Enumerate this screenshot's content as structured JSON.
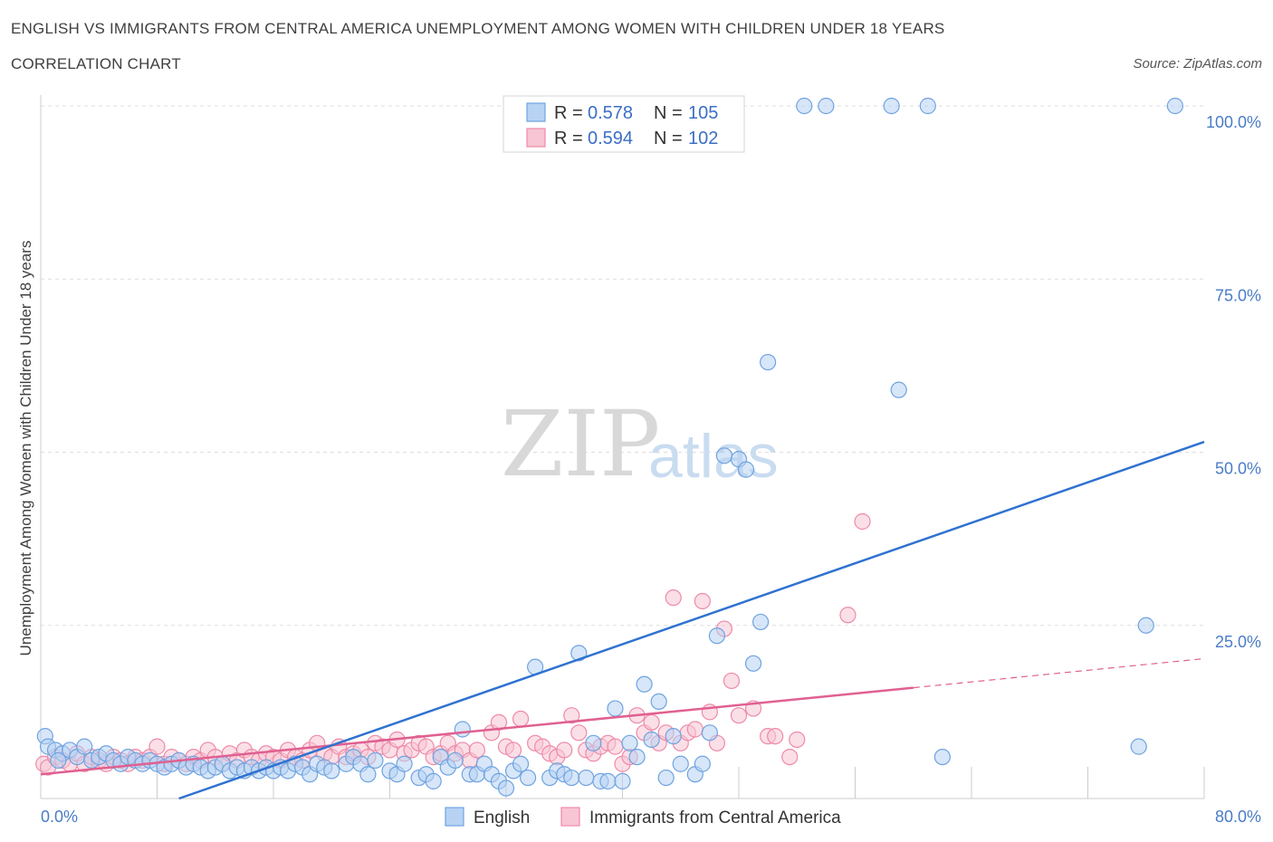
{
  "title": "ENGLISH VS IMMIGRANTS FROM CENTRAL AMERICA UNEMPLOYMENT AMONG WOMEN WITH CHILDREN UNDER 18 YEARS",
  "subtitle": "CORRELATION CHART",
  "source": "Source: ZipAtlas.com",
  "watermark": {
    "zip": "ZIP",
    "atlas": "atlas"
  },
  "colors": {
    "english": "#6fa3e0",
    "english_fill": "#b7d2f3",
    "english_line": "#2f72d0",
    "immigrants": "#ee8aa8",
    "immigrants_fill": "#f8c5d4",
    "immigrants_line": "#e06090",
    "tick_text": "#4a7cc7",
    "grid": "#dddddd"
  },
  "stats": {
    "r_label": "R =",
    "n_label": "N =",
    "rows": [
      {
        "series": "English",
        "r": "0.578",
        "n": "105"
      },
      {
        "series": "Immigrants from Central America",
        "r": "0.594",
        "n": "102"
      }
    ]
  },
  "chart_data": {
    "type": "scatter",
    "title": "ENGLISH VS IMMIGRANTS FROM CENTRAL AMERICA UNEMPLOYMENT AMONG WOMEN WITH CHILDREN UNDER 18 YEARS",
    "subtitle": "CORRELATION CHART",
    "xlabel": "",
    "ylabel": "Unemployment Among Women with Children Under 18 years",
    "xlim": [
      0,
      80
    ],
    "ylim": [
      0,
      100
    ],
    "x_tick_labels": [
      {
        "value": 0,
        "label": "0.0%"
      },
      {
        "value": 80,
        "label": "80.0%"
      }
    ],
    "y_tick_labels": [
      {
        "value": 25,
        "label": "25.0%"
      },
      {
        "value": 50,
        "label": "50.0%"
      },
      {
        "value": 75,
        "label": "75.0%"
      },
      {
        "value": 100,
        "label": "100.0%"
      }
    ],
    "grid": true,
    "legend": "bottom-center",
    "series": [
      {
        "name": "English",
        "regression": {
          "x": [
            9.5,
            80
          ],
          "y": [
            0,
            51.5
          ]
        },
        "points": [
          [
            0.3,
            9
          ],
          [
            0.5,
            7.5
          ],
          [
            1,
            7
          ],
          [
            1.5,
            6.5
          ],
          [
            2,
            7
          ],
          [
            2.5,
            6
          ],
          [
            3,
            7.5
          ],
          [
            3.5,
            5.5
          ],
          [
            4,
            6
          ],
          [
            4.5,
            6.5
          ],
          [
            5,
            5.5
          ],
          [
            5.5,
            5
          ],
          [
            6,
            6
          ],
          [
            6.5,
            5.5
          ],
          [
            7,
            5
          ],
          [
            7.5,
            5.5
          ],
          [
            8,
            5
          ],
          [
            8.5,
            4.5
          ],
          [
            9,
            5
          ],
          [
            9.5,
            5.5
          ],
          [
            10,
            4.5
          ],
          [
            10.5,
            5
          ],
          [
            11,
            4.5
          ],
          [
            11.5,
            4
          ],
          [
            12,
            4.5
          ],
          [
            12.5,
            5
          ],
          [
            13,
            4
          ],
          [
            13.5,
            4.5
          ],
          [
            14,
            4
          ],
          [
            14.5,
            4.5
          ],
          [
            15,
            4
          ],
          [
            15.5,
            4.5
          ],
          [
            16,
            4
          ],
          [
            16.5,
            4.5
          ],
          [
            17,
            4
          ],
          [
            17.5,
            5
          ],
          [
            18,
            4.5
          ],
          [
            18.5,
            3.5
          ],
          [
            19,
            5
          ],
          [
            19.5,
            4.5
          ],
          [
            20,
            4
          ],
          [
            21,
            5
          ],
          [
            21.5,
            6
          ],
          [
            22,
            5
          ],
          [
            22.5,
            3.5
          ],
          [
            23,
            5.5
          ],
          [
            24,
            4
          ],
          [
            24.5,
            3.5
          ],
          [
            25,
            5
          ],
          [
            26,
            3
          ],
          [
            26.5,
            3.5
          ],
          [
            27,
            2.5
          ],
          [
            27.5,
            6
          ],
          [
            28,
            4.5
          ],
          [
            28.5,
            5.5
          ],
          [
            29,
            10
          ],
          [
            29.5,
            3.5
          ],
          [
            30,
            3.5
          ],
          [
            30.5,
            5
          ],
          [
            31,
            3.5
          ],
          [
            31.5,
            2.5
          ],
          [
            32,
            1.5
          ],
          [
            32.5,
            4
          ],
          [
            33,
            5
          ],
          [
            33.5,
            3
          ],
          [
            34,
            19
          ],
          [
            35,
            3
          ],
          [
            35.5,
            4
          ],
          [
            36,
            3.5
          ],
          [
            36.5,
            3
          ],
          [
            37,
            21
          ],
          [
            37.5,
            3
          ],
          [
            38,
            8
          ],
          [
            38.5,
            2.5
          ],
          [
            39,
            2.5
          ],
          [
            39.5,
            13
          ],
          [
            40,
            2.5
          ],
          [
            40.5,
            8
          ],
          [
            41,
            6
          ],
          [
            41.5,
            16.5
          ],
          [
            42,
            8.5
          ],
          [
            42.5,
            14
          ],
          [
            43,
            3
          ],
          [
            43.5,
            9
          ],
          [
            44,
            5
          ],
          [
            45,
            3.5
          ],
          [
            45.5,
            5
          ],
          [
            46,
            9.5
          ],
          [
            46.5,
            23.5
          ],
          [
            47,
            49.5
          ],
          [
            48,
            49
          ],
          [
            48.5,
            47.5
          ],
          [
            49,
            19.5
          ],
          [
            49.5,
            25.5
          ],
          [
            50,
            63
          ],
          [
            52.5,
            100
          ],
          [
            54,
            100
          ],
          [
            58.5,
            100
          ],
          [
            59,
            59
          ],
          [
            61,
            100
          ],
          [
            62,
            6
          ],
          [
            76,
            25
          ],
          [
            75.5,
            7.5
          ],
          [
            78,
            100
          ],
          [
            1.2,
            5.5
          ]
        ]
      },
      {
        "name": "Immigrants from Central America",
        "regression": {
          "x": [
            0,
            60
          ],
          "y": [
            3.5,
            16
          ]
        },
        "extrapolation": {
          "x": [
            60,
            80
          ],
          "y": [
            16,
            20.2
          ]
        },
        "points": [
          [
            0.2,
            5
          ],
          [
            0.5,
            4.5
          ],
          [
            1,
            6
          ],
          [
            1.5,
            5.5
          ],
          [
            2,
            5
          ],
          [
            2.5,
            6.5
          ],
          [
            3,
            5
          ],
          [
            3.5,
            6
          ],
          [
            4,
            5.5
          ],
          [
            4.5,
            5
          ],
          [
            5,
            6
          ],
          [
            5.5,
            5.5
          ],
          [
            6,
            5
          ],
          [
            6.5,
            6
          ],
          [
            7,
            5.5
          ],
          [
            7.5,
            6
          ],
          [
            8,
            7.5
          ],
          [
            8.5,
            5
          ],
          [
            9,
            6
          ],
          [
            9.5,
            5.5
          ],
          [
            10,
            5
          ],
          [
            10.5,
            6
          ],
          [
            11,
            5.5
          ],
          [
            11.5,
            7
          ],
          [
            12,
            6
          ],
          [
            12.5,
            5
          ],
          [
            13,
            6.5
          ],
          [
            13.5,
            5.5
          ],
          [
            14,
            7
          ],
          [
            14.5,
            6
          ],
          [
            15,
            5.5
          ],
          [
            15.5,
            6.5
          ],
          [
            16,
            6
          ],
          [
            16.5,
            5.5
          ],
          [
            17,
            7
          ],
          [
            17.5,
            6
          ],
          [
            18,
            5.5
          ],
          [
            18.5,
            7
          ],
          [
            19,
            8
          ],
          [
            19.5,
            6.5
          ],
          [
            20,
            6
          ],
          [
            20.5,
            7.5
          ],
          [
            21,
            6
          ],
          [
            21.5,
            6.5
          ],
          [
            22,
            7
          ],
          [
            22.5,
            6
          ],
          [
            23,
            8
          ],
          [
            23.5,
            7.5
          ],
          [
            24,
            7
          ],
          [
            24.5,
            8.5
          ],
          [
            25,
            6.5
          ],
          [
            25.5,
            7
          ],
          [
            26,
            8
          ],
          [
            26.5,
            7.5
          ],
          [
            27,
            6
          ],
          [
            27.5,
            6.5
          ],
          [
            28,
            8
          ],
          [
            28.5,
            6.5
          ],
          [
            29,
            7
          ],
          [
            29.5,
            5.5
          ],
          [
            30,
            7
          ],
          [
            31,
            9.5
          ],
          [
            31.5,
            11
          ],
          [
            32,
            7.5
          ],
          [
            32.5,
            7
          ],
          [
            33,
            11.5
          ],
          [
            34,
            8
          ],
          [
            34.5,
            7.5
          ],
          [
            35,
            6.5
          ],
          [
            35.5,
            6
          ],
          [
            36,
            7
          ],
          [
            36.5,
            12
          ],
          [
            37,
            9.5
          ],
          [
            37.5,
            7
          ],
          [
            38,
            6.5
          ],
          [
            38.5,
            7.5
          ],
          [
            39,
            8
          ],
          [
            39.5,
            7.5
          ],
          [
            40,
            5
          ],
          [
            40.5,
            6
          ],
          [
            41,
            12
          ],
          [
            41.5,
            9.5
          ],
          [
            42,
            11
          ],
          [
            42.5,
            8
          ],
          [
            43,
            9.5
          ],
          [
            43.5,
            29
          ],
          [
            44,
            8
          ],
          [
            44.5,
            9.5
          ],
          [
            45,
            10
          ],
          [
            45.5,
            28.5
          ],
          [
            46,
            12.5
          ],
          [
            46.5,
            8
          ],
          [
            47,
            24.5
          ],
          [
            47.5,
            17
          ],
          [
            48,
            12
          ],
          [
            49,
            13
          ],
          [
            50,
            9
          ],
          [
            50.5,
            9
          ],
          [
            51.5,
            6
          ],
          [
            52,
            8.5
          ],
          [
            56.5,
            40
          ],
          [
            55.5,
            26.5
          ]
        ]
      }
    ]
  },
  "legend": {
    "items": [
      {
        "label": "English"
      },
      {
        "label": "Immigrants from Central America"
      }
    ]
  }
}
